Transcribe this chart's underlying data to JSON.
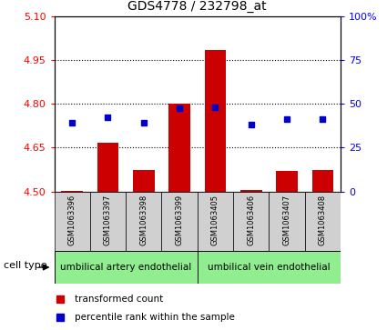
{
  "title": "GDS4778 / 232798_at",
  "samples": [
    "GSM1063396",
    "GSM1063397",
    "GSM1063398",
    "GSM1063399",
    "GSM1063405",
    "GSM1063406",
    "GSM1063407",
    "GSM1063408"
  ],
  "red_values": [
    4.502,
    4.668,
    4.572,
    4.8,
    4.985,
    4.505,
    4.57,
    4.572
  ],
  "blue_values": [
    4.735,
    4.755,
    4.735,
    4.785,
    4.788,
    4.73,
    4.748,
    4.748
  ],
  "ylim_left": [
    4.5,
    5.1
  ],
  "ylim_right": [
    0,
    100
  ],
  "yticks_left": [
    4.5,
    4.65,
    4.8,
    4.95,
    5.1
  ],
  "yticks_right": [
    0,
    25,
    50,
    75,
    100
  ],
  "ytick_labels_right": [
    "0",
    "25",
    "50",
    "75",
    "100%"
  ],
  "cell_types": [
    "umbilical artery endothelial",
    "umbilical vein endothelial"
  ],
  "bar_color": "#CC0000",
  "dot_color": "#0000CC",
  "bar_base": 4.5,
  "bar_width": 0.6,
  "legend_red": "transformed count",
  "legend_blue": "percentile rank within the sample",
  "cell_type_label": "cell type",
  "gray_box_color": "#d0d0d0",
  "green_color": "#90EE90"
}
